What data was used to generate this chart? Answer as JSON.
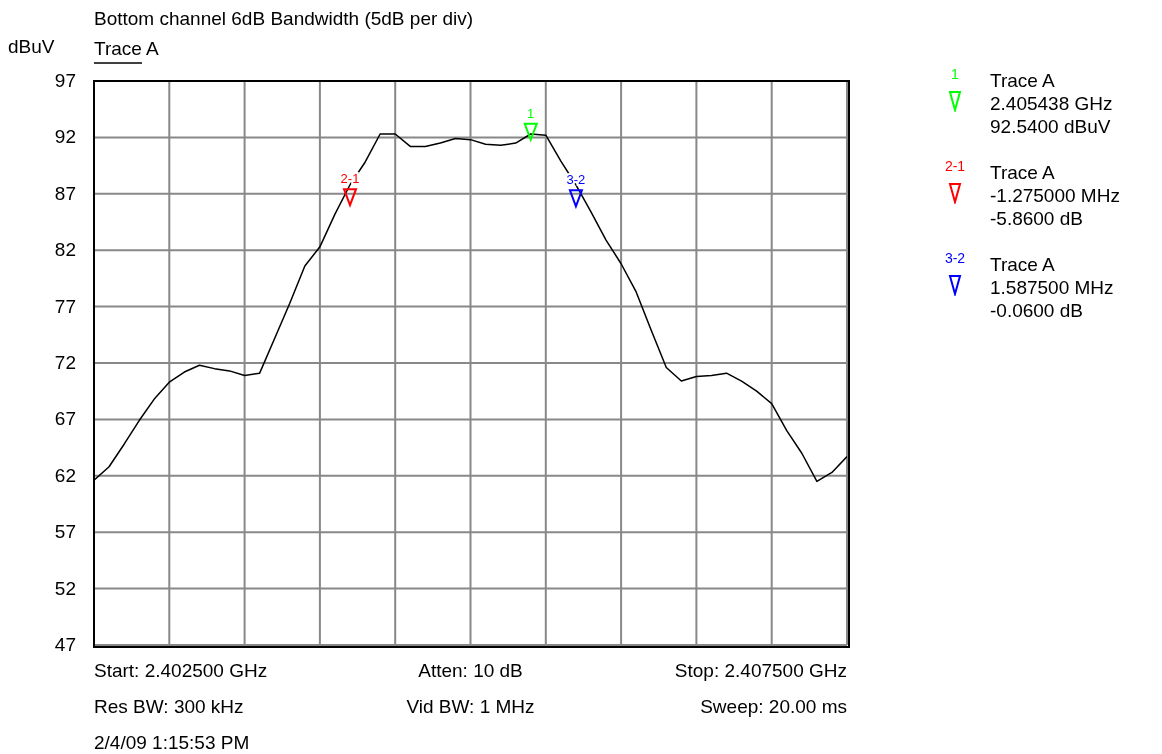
{
  "chart_data": {
    "type": "line",
    "title": "Bottom channel 6dB Bandwidth (5dB per div)",
    "ylabel": "dBuV",
    "categories": [
      null,
      null,
      null,
      null,
      null,
      null,
      null,
      null,
      null,
      null,
      null,
      null,
      null,
      null,
      null,
      null,
      null,
      null,
      null,
      null,
      null,
      null,
      null,
      null,
      null,
      null,
      null,
      null,
      null,
      null,
      null,
      null,
      null,
      null,
      null,
      null,
      null,
      null,
      null,
      null,
      null,
      null,
      null,
      null,
      null,
      null,
      null,
      null,
      null,
      null,
      null
    ],
    "ylim": [
      47,
      97
    ],
    "yticks": [
      47,
      52,
      57,
      62,
      67,
      72,
      77,
      82,
      87,
      92,
      97
    ],
    "grid": true,
    "legend": "top left",
    "line_style": "solid",
    "series": [
      {
        "name": "Trace A",
        "color": "#000000",
        "values": [
          61.6,
          62.8,
          64.8,
          66.9,
          68.8,
          70.3,
          71.2,
          71.8,
          71.5,
          71.3,
          70.9,
          71.1,
          74.2,
          77.3,
          80.6,
          82.3,
          85.2,
          87.8,
          89.8,
          92.3,
          92.3,
          91.2,
          91.2,
          91.5,
          91.9,
          91.8,
          91.4,
          91.3,
          91.5,
          92.3,
          92.2,
          89.9,
          87.8,
          85.4,
          82.9,
          80.8,
          78.3,
          74.9,
          71.6,
          70.4,
          70.8,
          70.9,
          71.1,
          70.4,
          69.5,
          68.4,
          66.0,
          64.0,
          61.5,
          62.3,
          63.7
        ]
      },
      {
        "name": "1",
        "type": "scatter",
        "marker": "triangle",
        "color": "#00ff00",
        "values": [
          null,
          null,
          null,
          null,
          null,
          null,
          null,
          null,
          null,
          null,
          null,
          null,
          null,
          null,
          null,
          null,
          null,
          null,
          null,
          null,
          null,
          null,
          null,
          null,
          null,
          null,
          null,
          null,
          null,
          92.5,
          null,
          null,
          null,
          null,
          null,
          null,
          null,
          null,
          null,
          null,
          null,
          null,
          null,
          null,
          null,
          null,
          null,
          null,
          null,
          null,
          null
        ]
      },
      {
        "name": "2-1",
        "type": "scatter",
        "marker": "triangle",
        "color": "#ff0000",
        "values": [
          null,
          null,
          null,
          null,
          null,
          null,
          null,
          null,
          null,
          null,
          null,
          null,
          null,
          null,
          null,
          null,
          null,
          86.7,
          null,
          null,
          null,
          null,
          null,
          null,
          null,
          null,
          null,
          null,
          null,
          null,
          null,
          null,
          null,
          null,
          null,
          null,
          null,
          null,
          null,
          null,
          null,
          null,
          null,
          null,
          null,
          null,
          null,
          null,
          null,
          null,
          null
        ]
      },
      {
        "name": "3-2",
        "type": "scatter",
        "marker": "triangle",
        "color": "#0000ff",
        "values": [
          null,
          null,
          null,
          null,
          null,
          null,
          null,
          null,
          null,
          null,
          null,
          null,
          null,
          null,
          null,
          null,
          null,
          null,
          null,
          null,
          null,
          null,
          null,
          null,
          null,
          null,
          null,
          null,
          null,
          null,
          null,
          null,
          86.6,
          null,
          null,
          null,
          null,
          null,
          null,
          null,
          null,
          null,
          null,
          null,
          null,
          null,
          null,
          null,
          null,
          null,
          null
        ]
      }
    ],
    "annotations": [
      "Trace A",
      "2.405438 GHz",
      "92.5400 dBuV",
      "Trace A",
      "-1.275000 MHz",
      "-5.8600 dB",
      "Trace A",
      "1.587500 MHz",
      "-0.0600 dB",
      "Start: 2.402500 GHz",
      "Atten: 10 dB",
      "Stop: 2.407500 GHz",
      "Res BW: 300 kHz",
      "Vid BW: 1 MHz",
      "Sweep: 20.00 ms",
      "2/4/09 1:15:53 PM"
    ]
  }
}
